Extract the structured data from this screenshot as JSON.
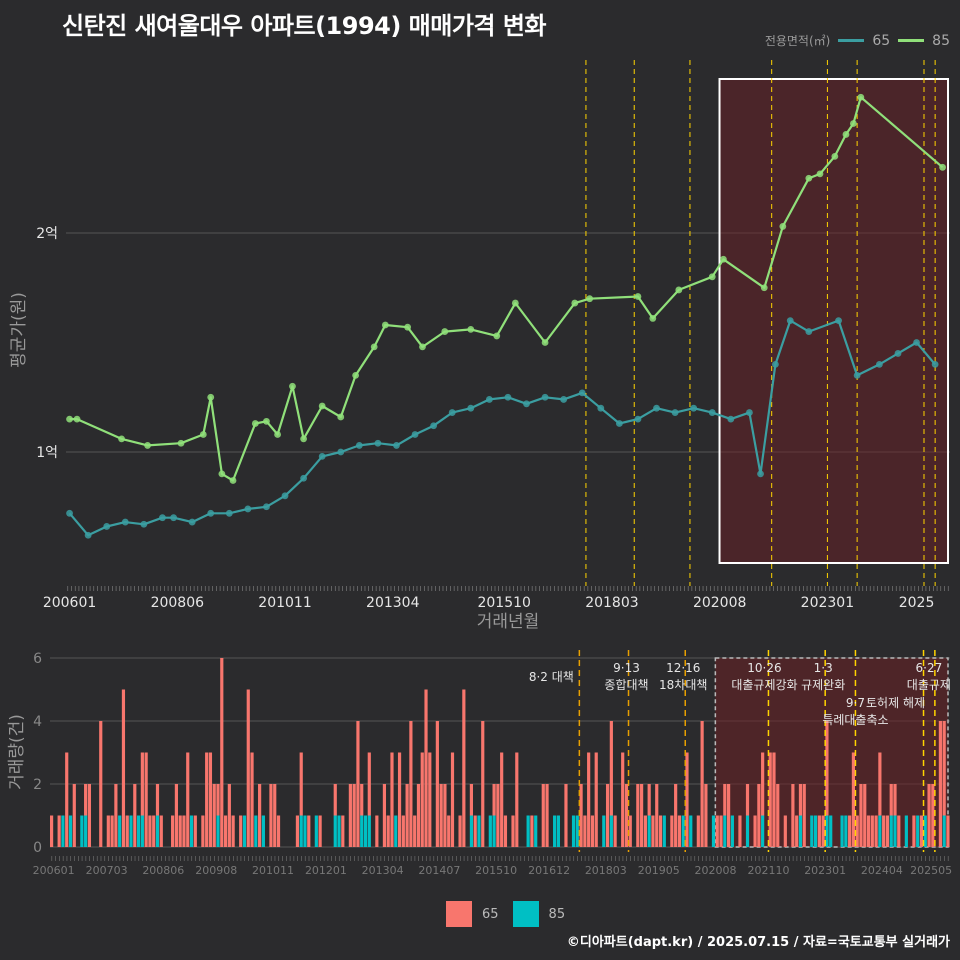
{
  "title": "신탄진 새여울대우 아파트(1994) 매매가격 변화",
  "legend": {
    "title": "전용면적(㎡)",
    "items": [
      "65",
      "85"
    ]
  },
  "footer": "©디아파트(dapt.kr) / 2025.07.15 / 자료=국토교통부 실거래가",
  "colors": {
    "s65": "#3b9ea1",
    "s85": "#90e07a",
    "bar65": "#f8766d",
    "bar85": "#00bfc4",
    "policy": "#ffd400",
    "shade": "#6b2025"
  },
  "chart_data": [
    {
      "type": "line",
      "xlabel": "거래년월",
      "ylabel": "평균가(원)",
      "y_ticks": [
        {
          "value": 100000000,
          "label": "1억"
        },
        {
          "value": 200000000,
          "label": "2억"
        }
      ],
      "x_tick_labels": [
        "200601",
        "200806",
        "201011",
        "201304",
        "201510",
        "201803",
        "202008",
        "202301",
        "2025"
      ],
      "series": [
        {
          "name": "65",
          "points": [
            [
              "2006-01",
              72000000
            ],
            [
              "2006-06",
              62000000
            ],
            [
              "2006-11",
              66000000
            ],
            [
              "2007-04",
              68000000
            ],
            [
              "2007-09",
              67000000
            ],
            [
              "2008-02",
              70000000
            ],
            [
              "2008-05",
              70000000
            ],
            [
              "2008-10",
              68000000
            ],
            [
              "2009-03",
              72000000
            ],
            [
              "2009-08",
              72000000
            ],
            [
              "2010-01",
              74000000
            ],
            [
              "2010-06",
              75000000
            ],
            [
              "2010-11",
              80000000
            ],
            [
              "2011-04",
              88000000
            ],
            [
              "2011-09",
              98000000
            ],
            [
              "2012-02",
              100000000
            ],
            [
              "2012-07",
              103000000
            ],
            [
              "2012-12",
              104000000
            ],
            [
              "2013-05",
              103000000
            ],
            [
              "2013-10",
              108000000
            ],
            [
              "2014-03",
              112000000
            ],
            [
              "2014-08",
              118000000
            ],
            [
              "2015-01",
              120000000
            ],
            [
              "2015-06",
              124000000
            ],
            [
              "2015-11",
              125000000
            ],
            [
              "2016-04",
              122000000
            ],
            [
              "2016-09",
              125000000
            ],
            [
              "2017-02",
              124000000
            ],
            [
              "2017-07",
              127000000
            ],
            [
              "2017-12",
              120000000
            ],
            [
              "2018-05",
              113000000
            ],
            [
              "2018-10",
              115000000
            ],
            [
              "2019-03",
              120000000
            ],
            [
              "2019-08",
              118000000
            ],
            [
              "2020-01",
              120000000
            ],
            [
              "2020-06",
              118000000
            ],
            [
              "2020-11",
              115000000
            ],
            [
              "2021-04",
              118000000
            ],
            [
              "2021-07",
              90000000
            ],
            [
              "2021-11",
              140000000
            ],
            [
              "2022-03",
              160000000
            ],
            [
              "2022-08",
              155000000
            ],
            [
              "2023-04",
              160000000
            ],
            [
              "2023-09",
              135000000
            ],
            [
              "2024-03",
              140000000
            ],
            [
              "2024-08",
              145000000
            ],
            [
              "2025-01",
              150000000
            ],
            [
              "2025-06",
              140000000
            ]
          ]
        },
        {
          "name": "85",
          "points": [
            [
              "2006-01",
              115000000
            ],
            [
              "2006-03",
              115000000
            ],
            [
              "2007-03",
              106000000
            ],
            [
              "2007-10",
              103000000
            ],
            [
              "2008-07",
              104000000
            ],
            [
              "2009-01",
              108000000
            ],
            [
              "2009-03",
              125000000
            ],
            [
              "2009-06",
              90000000
            ],
            [
              "2009-09",
              87000000
            ],
            [
              "2010-03",
              113000000
            ],
            [
              "2010-06",
              114000000
            ],
            [
              "2010-09",
              108000000
            ],
            [
              "2011-01",
              130000000
            ],
            [
              "2011-04",
              106000000
            ],
            [
              "2011-09",
              121000000
            ],
            [
              "2012-02",
              116000000
            ],
            [
              "2012-06",
              135000000
            ],
            [
              "2012-11",
              148000000
            ],
            [
              "2013-02",
              158000000
            ],
            [
              "2013-08",
              157000000
            ],
            [
              "2013-12",
              148000000
            ],
            [
              "2014-06",
              155000000
            ],
            [
              "2015-01",
              156000000
            ],
            [
              "2015-08",
              153000000
            ],
            [
              "2016-01",
              168000000
            ],
            [
              "2016-09",
              150000000
            ],
            [
              "2017-05",
              168000000
            ],
            [
              "2017-09",
              170000000
            ],
            [
              "2018-10",
              171000000
            ],
            [
              "2019-02",
              161000000
            ],
            [
              "2019-09",
              174000000
            ],
            [
              "2020-06",
              180000000
            ],
            [
              "2020-09",
              188000000
            ],
            [
              "2021-08",
              175000000
            ],
            [
              "2022-01",
              203000000
            ],
            [
              "2022-08",
              225000000
            ],
            [
              "2022-11",
              227000000
            ],
            [
              "2023-03",
              235000000
            ],
            [
              "2023-06",
              245000000
            ],
            [
              "2023-08",
              250000000
            ],
            [
              "2023-10",
              262000000
            ],
            [
              "2025-08",
              230000000
            ]
          ]
        }
      ]
    },
    {
      "type": "bar",
      "xlabel": "",
      "ylabel": "거래량(건)",
      "ylim": [
        0,
        6
      ],
      "y_ticks": [
        0,
        2,
        4,
        6
      ],
      "x_tick_labels": [
        "200601",
        "200703",
        "200806",
        "200908",
        "201011",
        "201201",
        "201304",
        "201407",
        "201510",
        "201612",
        "201803",
        "201905",
        "202008",
        "202110",
        "202301",
        "202404",
        "202505"
      ],
      "series": [
        {
          "name": "65",
          "color": "#f8766d"
        },
        {
          "name": "85",
          "color": "#00bfc4"
        }
      ],
      "peak_volume": 6
    }
  ],
  "policy_events": [
    {
      "date": "2017-08",
      "label": "8·2 대책"
    },
    {
      "date": "2018-09",
      "label": "9·13\n종합대책"
    },
    {
      "date": "2019-12",
      "label": "12·16\n18차대책"
    },
    {
      "date": "2021-10",
      "label": "10·26\n대출규제강화"
    },
    {
      "date": "2023-01",
      "label": "1·3\n규제완화"
    },
    {
      "date": "2023-09",
      "label": "9·7\n특례대출축소"
    },
    {
      "date": "2025-03",
      "label": "토허제 해제"
    },
    {
      "date": "2025-06",
      "label": "6·27\n대출규제"
    }
  ]
}
